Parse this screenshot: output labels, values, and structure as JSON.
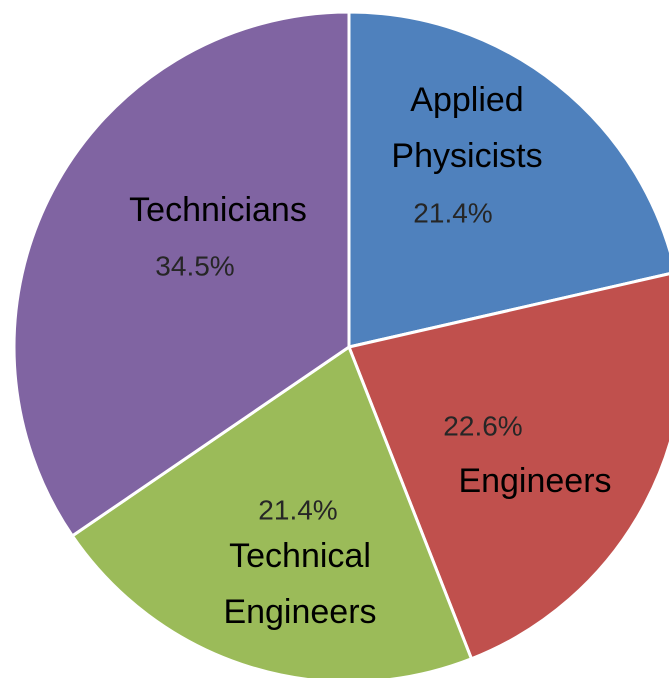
{
  "chart_data": {
    "type": "pie",
    "categories": [
      "Applied Physicists",
      "Engineers",
      "Technical Engineers",
      "Technicians"
    ],
    "values": [
      21.4,
      22.6,
      21.4,
      34.5
    ],
    "value_labels": [
      "21.4%",
      "22.6%",
      "21.4%",
      "34.5%"
    ],
    "colors": [
      "#4f81bd",
      "#c0504d",
      "#9bbb59",
      "#8064a2"
    ]
  }
}
